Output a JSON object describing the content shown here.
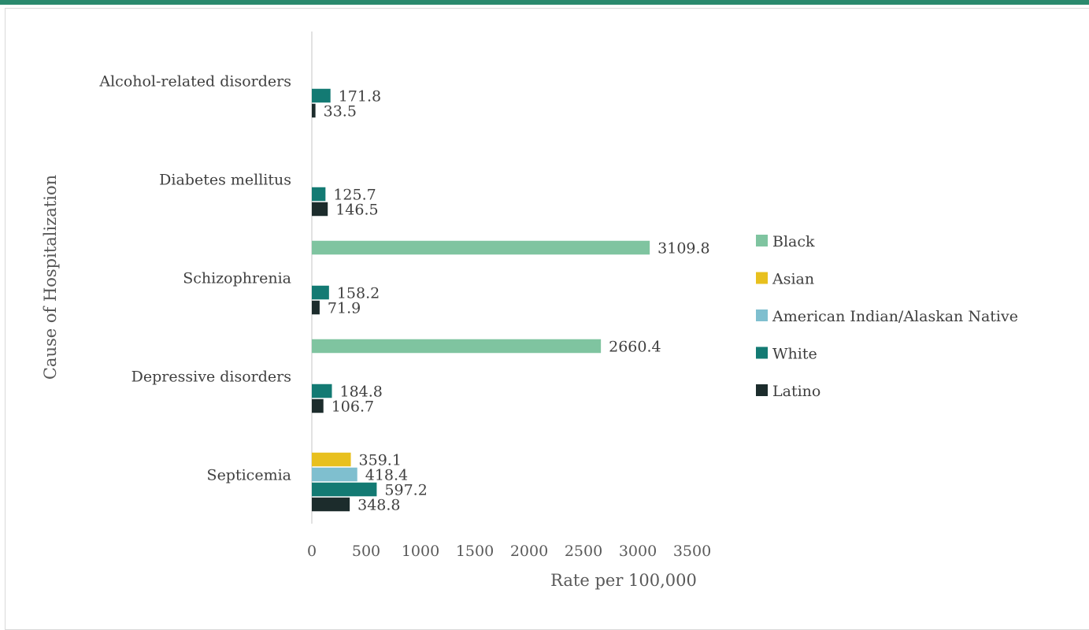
{
  "chart_data": {
    "type": "bar",
    "orientation": "horizontal",
    "title": "",
    "xlabel": "Rate per 100,000",
    "ylabel": "Cause of Hospitalization",
    "xlim": [
      0,
      3500
    ],
    "xticks": [
      "0",
      "500",
      "1000",
      "1500",
      "2000",
      "2500",
      "3000",
      "3500"
    ],
    "grid": false,
    "legend_position": "right",
    "categories": [
      "Alcohol-related disorders",
      "Diabetes mellitus",
      "Schizophrenia",
      "Depressive disorders",
      "Septicemia"
    ],
    "series": [
      {
        "name": "Black",
        "color": "#7fc4a0",
        "values": [
          null,
          null,
          3109.8,
          2660.4,
          null
        ],
        "labels": [
          "",
          "",
          "3109.8",
          "2660.4",
          ""
        ]
      },
      {
        "name": "Asian",
        "color": "#e8c01e",
        "values": [
          null,
          null,
          null,
          null,
          359.1
        ],
        "labels": [
          "",
          "",
          "",
          "",
          "359.1"
        ]
      },
      {
        "name": "American Indian/Alaskan Native",
        "color": "#7fbfcf",
        "values": [
          null,
          null,
          null,
          null,
          418.4
        ],
        "labels": [
          "",
          "",
          "",
          "",
          "418.4"
        ]
      },
      {
        "name": "White",
        "color": "#137a73",
        "values": [
          171.8,
          125.7,
          158.2,
          184.8,
          597.2
        ],
        "labels": [
          "171.8",
          "125.7",
          "158.2",
          "184.8",
          "597.2"
        ]
      },
      {
        "name": "Latino",
        "color": "#1c2c2c",
        "values": [
          33.5,
          146.5,
          71.9,
          106.7,
          348.8
        ],
        "labels": [
          "33.5",
          "146.5",
          "71.9",
          "106.7",
          "348.8"
        ]
      }
    ]
  }
}
